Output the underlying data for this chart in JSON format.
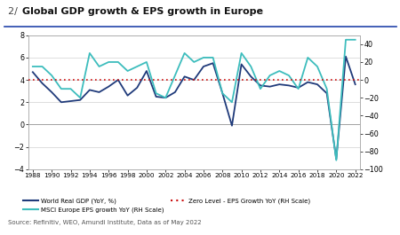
{
  "title_prefix": "2/ ",
  "title_main": "Global GDP growth & EPS growth in Europe",
  "source": "Source: Refinitiv, WEO, Amundi Institute, Data as of May 2022",
  "years_gdp": [
    1988,
    1989,
    1990,
    1991,
    1992,
    1993,
    1994,
    1995,
    1996,
    1997,
    1998,
    1999,
    2000,
    2001,
    2002,
    2003,
    2004,
    2005,
    2006,
    2007,
    2008,
    2009,
    2010,
    2011,
    2012,
    2013,
    2014,
    2015,
    2016,
    2017,
    2018,
    2019,
    2020,
    2021,
    2022
  ],
  "gdp_values": [
    4.7,
    3.7,
    2.9,
    2.0,
    2.1,
    2.2,
    3.1,
    2.9,
    3.4,
    4.0,
    2.6,
    3.3,
    4.8,
    2.5,
    2.4,
    2.9,
    4.3,
    4.0,
    5.2,
    5.5,
    2.8,
    -0.1,
    5.4,
    4.3,
    3.5,
    3.4,
    3.6,
    3.5,
    3.3,
    3.8,
    3.6,
    2.8,
    -3.1,
    6.1,
    3.6
  ],
  "years_eps": [
    1988,
    1989,
    1990,
    1991,
    1992,
    1993,
    1994,
    1995,
    1996,
    1997,
    1998,
    1999,
    2000,
    2001,
    2002,
    2003,
    2004,
    2005,
    2006,
    2007,
    2008,
    2009,
    2010,
    2011,
    2012,
    2013,
    2014,
    2015,
    2016,
    2017,
    2018,
    2019,
    2020,
    2021,
    2022
  ],
  "eps_values": [
    15,
    15,
    5,
    -10,
    -10,
    -20,
    30,
    15,
    20,
    20,
    10,
    15,
    20,
    -15,
    -20,
    5,
    30,
    20,
    25,
    25,
    -15,
    -25,
    30,
    15,
    -10,
    5,
    10,
    5,
    -10,
    25,
    15,
    -10,
    -90,
    45,
    45
  ],
  "gdp_color": "#1f3a7a",
  "eps_color": "#3dbdbd",
  "zero_line_color": "#cc1111",
  "left_ylim": [
    -4,
    8
  ],
  "right_ylim": [
    -100,
    50
  ],
  "left_yticks": [
    -4,
    -2,
    0,
    2,
    4,
    6,
    8
  ],
  "right_yticks": [
    -100,
    -80,
    -60,
    -40,
    -20,
    0,
    20,
    40
  ],
  "xticks": [
    1988,
    1990,
    1992,
    1994,
    1996,
    1998,
    2000,
    2002,
    2004,
    2006,
    2008,
    2010,
    2012,
    2014,
    2016,
    2018,
    2020,
    2022
  ],
  "legend_gdp": "World Real GDP (YoY, %)",
  "legend_eps": "MSCI Europe EPS growth YoY (RH Scale)",
  "legend_zero": "Zero Level - EPS Growth YoY (RH Scale)",
  "background_color": "#ffffff",
  "grid_color": "#d0d0d0"
}
